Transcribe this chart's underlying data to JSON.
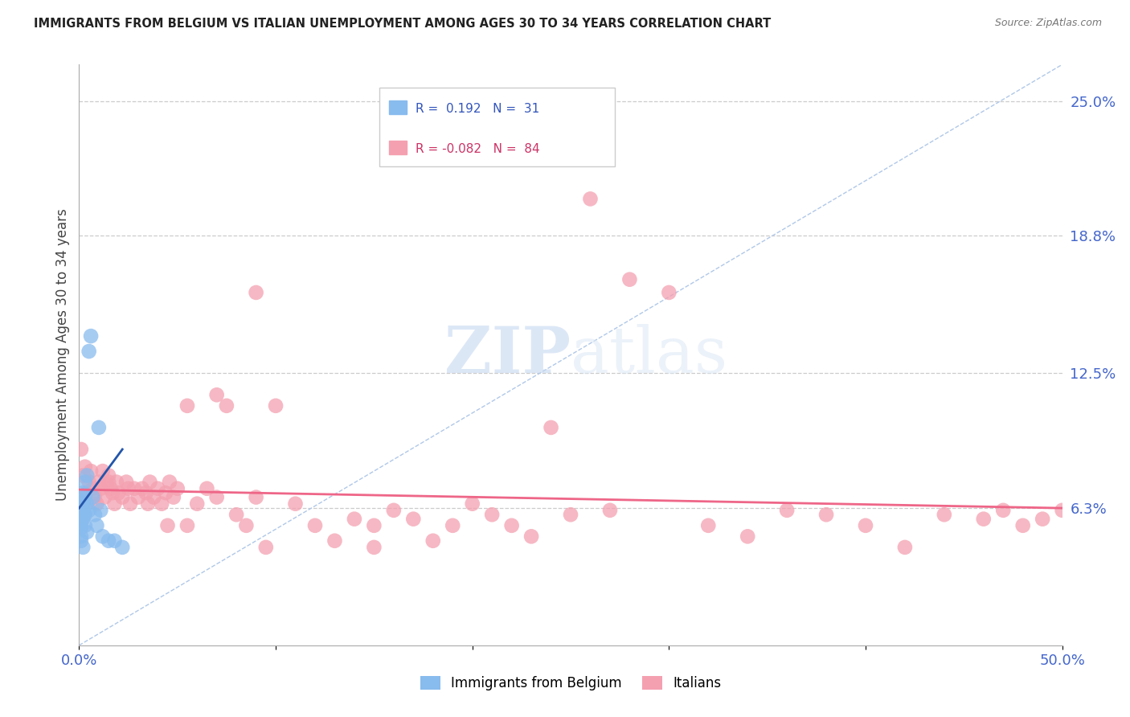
{
  "title": "IMMIGRANTS FROM BELGIUM VS ITALIAN UNEMPLOYMENT AMONG AGES 30 TO 34 YEARS CORRELATION CHART",
  "source": "Source: ZipAtlas.com",
  "ylabel": "Unemployment Among Ages 30 to 34 years",
  "xlim": [
    0.0,
    0.5
  ],
  "ylim": [
    0.0,
    0.2667
  ],
  "right_yticks": [
    0.063,
    0.125,
    0.188,
    0.25
  ],
  "right_yticklabels": [
    "6.3%",
    "12.5%",
    "18.8%",
    "25.0%"
  ],
  "blue_R": 0.192,
  "blue_N": 31,
  "pink_R": -0.082,
  "pink_N": 84,
  "blue_color": "#88bbee",
  "pink_color": "#f4a0b0",
  "blue_line_color": "#2255aa",
  "pink_line_color": "#ee6688",
  "diagonal_color": "#b0c8e8",
  "watermark_zip": "ZIP",
  "watermark_atlas": "atlas",
  "legend_label_blue": "Immigrants from Belgium",
  "legend_label_pink": "Italians",
  "blue_points_x": [
    0.001,
    0.001,
    0.001,
    0.001,
    0.001,
    0.001,
    0.001,
    0.002,
    0.002,
    0.002,
    0.002,
    0.002,
    0.003,
    0.003,
    0.003,
    0.003,
    0.004,
    0.004,
    0.004,
    0.005,
    0.005,
    0.006,
    0.007,
    0.008,
    0.009,
    0.01,
    0.011,
    0.012,
    0.015,
    0.018,
    0.022
  ],
  "blue_points_y": [
    0.066,
    0.063,
    0.06,
    0.057,
    0.054,
    0.05,
    0.048,
    0.07,
    0.065,
    0.062,
    0.058,
    0.045,
    0.075,
    0.068,
    0.06,
    0.055,
    0.078,
    0.065,
    0.052,
    0.135,
    0.062,
    0.142,
    0.068,
    0.06,
    0.055,
    0.1,
    0.062,
    0.05,
    0.048,
    0.048,
    0.045
  ],
  "pink_points_x": [
    0.001,
    0.002,
    0.003,
    0.004,
    0.005,
    0.006,
    0.007,
    0.008,
    0.009,
    0.01,
    0.011,
    0.012,
    0.013,
    0.014,
    0.015,
    0.016,
    0.017,
    0.018,
    0.019,
    0.02,
    0.022,
    0.024,
    0.026,
    0.028,
    0.03,
    0.032,
    0.034,
    0.036,
    0.038,
    0.04,
    0.042,
    0.044,
    0.046,
    0.048,
    0.05,
    0.055,
    0.06,
    0.065,
    0.07,
    0.075,
    0.08,
    0.085,
    0.09,
    0.095,
    0.1,
    0.11,
    0.12,
    0.13,
    0.14,
    0.15,
    0.16,
    0.17,
    0.18,
    0.19,
    0.2,
    0.21,
    0.22,
    0.23,
    0.24,
    0.25,
    0.26,
    0.27,
    0.28,
    0.3,
    0.32,
    0.34,
    0.36,
    0.38,
    0.4,
    0.42,
    0.44,
    0.46,
    0.47,
    0.48,
    0.49,
    0.5,
    0.015,
    0.025,
    0.035,
    0.045,
    0.055,
    0.07,
    0.09,
    0.15
  ],
  "pink_points_y": [
    0.09,
    0.078,
    0.082,
    0.07,
    0.075,
    0.08,
    0.072,
    0.068,
    0.065,
    0.075,
    0.072,
    0.08,
    0.068,
    0.074,
    0.078,
    0.072,
    0.07,
    0.065,
    0.075,
    0.07,
    0.068,
    0.075,
    0.065,
    0.072,
    0.068,
    0.072,
    0.07,
    0.075,
    0.068,
    0.072,
    0.065,
    0.07,
    0.075,
    0.068,
    0.072,
    0.055,
    0.065,
    0.072,
    0.068,
    0.11,
    0.06,
    0.055,
    0.068,
    0.045,
    0.11,
    0.065,
    0.055,
    0.048,
    0.058,
    0.055,
    0.062,
    0.058,
    0.048,
    0.055,
    0.065,
    0.06,
    0.055,
    0.05,
    0.1,
    0.06,
    0.205,
    0.062,
    0.168,
    0.162,
    0.055,
    0.05,
    0.062,
    0.06,
    0.055,
    0.045,
    0.06,
    0.058,
    0.062,
    0.055,
    0.058,
    0.062,
    0.075,
    0.072,
    0.065,
    0.055,
    0.11,
    0.115,
    0.162,
    0.045
  ],
  "blue_trend_x": [
    0.0,
    0.022
  ],
  "blue_trend_y": [
    0.063,
    0.09
  ],
  "pink_trend_x": [
    0.0,
    0.5
  ],
  "pink_trend_y": [
    0.0715,
    0.063
  ]
}
